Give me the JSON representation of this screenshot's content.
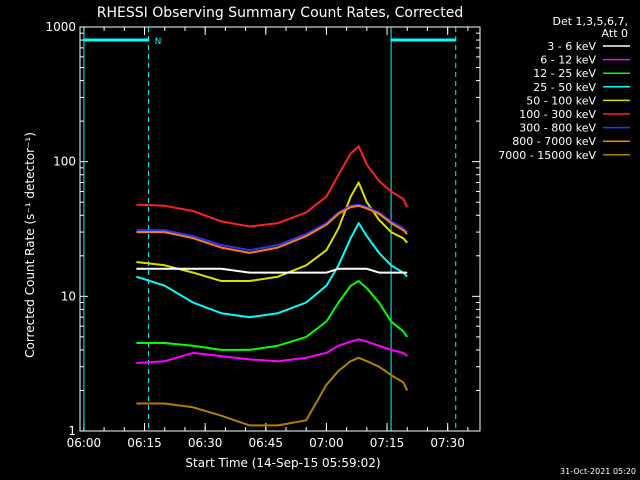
{
  "footer_timestamp": "31-Oct-2021 05:20",
  "chart_data": {
    "type": "line",
    "title": "RHESSI Observing Summary Count Rates, Corrected",
    "xlabel": "Start Time (14-Sep-15 05:59:02)",
    "ylabel": "Corrected Count Rate (s⁻¹ detector⁻¹)",
    "yscale": "log",
    "ylim": [
      1,
      1000
    ],
    "xlim": [
      "05:59:02",
      "07:38"
    ],
    "x_ticks": [
      "06:00",
      "06:15",
      "06:30",
      "06:45",
      "07:00",
      "07:15",
      "07:30"
    ],
    "y_ticks": [
      "1",
      "10",
      "100",
      "1000"
    ],
    "grid": false,
    "legend_position": "right",
    "legend_header": [
      "Det 1,3,5,6,7,",
      "Att 0"
    ],
    "annotations": [
      {
        "text": "N",
        "at": "06:16"
      }
    ],
    "dashed_markers": [
      "06:16",
      "07:32"
    ],
    "solid_markers": [
      "06:00",
      "07:16"
    ],
    "marker_bars": [
      {
        "from": "06:00",
        "to": "06:16",
        "level": 800
      },
      {
        "from": "07:16",
        "to": "07:32",
        "level": 800
      }
    ],
    "x": [
      "06:13",
      "06:20",
      "06:27",
      "06:34",
      "06:41",
      "06:48",
      "06:55",
      "07:00",
      "07:03",
      "07:06",
      "07:08",
      "07:10",
      "07:13",
      "07:16",
      "07:19",
      "07:20"
    ],
    "series": [
      {
        "name": "3 - 6 keV",
        "color": "#ffffff",
        "values": [
          16,
          16,
          16,
          16,
          15,
          15,
          15,
          15,
          16,
          16,
          16,
          16,
          15,
          15,
          15,
          15
        ]
      },
      {
        "name": "6 - 12 keV",
        "color": "#ff00ff",
        "values": [
          3.2,
          3.3,
          3.8,
          3.6,
          3.4,
          3.3,
          3.5,
          3.8,
          4.3,
          4.6,
          4.8,
          4.6,
          4.3,
          4,
          3.8,
          3.6
        ]
      },
      {
        "name": "12 - 25 keV",
        "color": "#00ff00",
        "values": [
          4.5,
          4.5,
          4.3,
          4,
          4,
          4.3,
          5,
          6.5,
          9,
          12,
          13,
          11.5,
          9,
          6.5,
          5.5,
          5
        ]
      },
      {
        "name": "25 - 50 keV",
        "color": "#00ffff",
        "values": [
          14,
          12,
          9,
          7.5,
          7,
          7.5,
          9,
          12,
          17,
          27,
          35,
          28,
          21,
          17,
          15,
          14
        ]
      },
      {
        "name": "50 - 100 keV",
        "color": "#dddd00",
        "values": [
          18,
          17,
          15,
          13,
          13,
          14,
          17,
          22,
          32,
          55,
          70,
          50,
          37,
          30,
          27,
          25
        ]
      },
      {
        "name": "100 - 300 keV",
        "color": "#ff2020",
        "values": [
          48,
          47,
          43,
          36,
          33,
          35,
          42,
          55,
          80,
          115,
          130,
          95,
          72,
          60,
          53,
          46
        ]
      },
      {
        "name": "300 - 800 keV",
        "color": "#3030ff",
        "values": [
          31,
          31,
          28,
          24,
          22,
          24,
          29,
          35,
          42,
          47,
          48,
          46,
          42,
          36,
          32,
          30
        ]
      },
      {
        "name": "800 - 7000 keV",
        "color": "#ff8000",
        "values": [
          30,
          30,
          27,
          23,
          21,
          23,
          28,
          34,
          41,
          46,
          47,
          45,
          41,
          35,
          31,
          29
        ]
      },
      {
        "name": "7000 - 15000 keV",
        "color": "#b08000",
        "values": [
          1.6,
          1.6,
          1.5,
          1.3,
          1.1,
          1.1,
          1.2,
          2.2,
          2.8,
          3.3,
          3.5,
          3.3,
          3,
          2.6,
          2.3,
          2
        ]
      }
    ]
  }
}
